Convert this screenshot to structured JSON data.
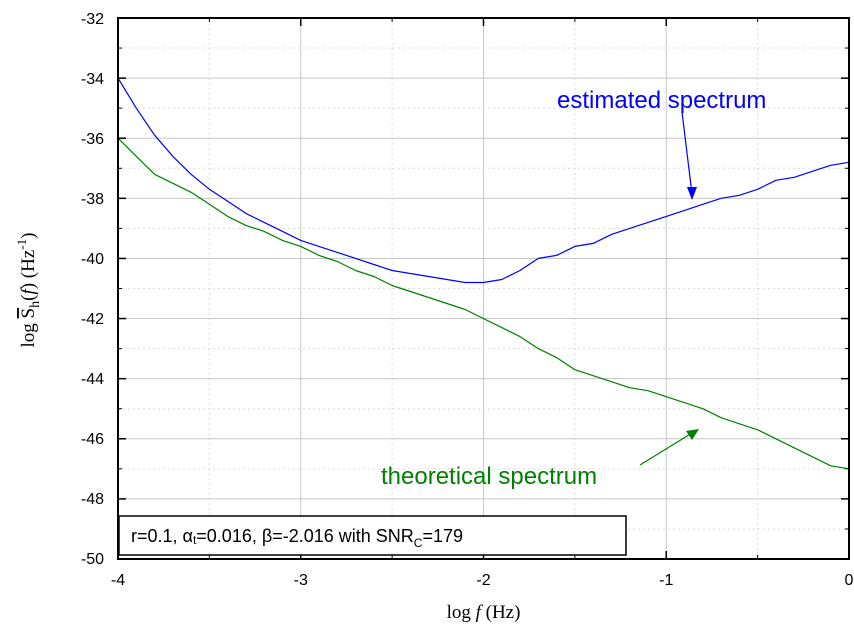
{
  "chart_data": {
    "type": "line",
    "xlim": [
      -4,
      0
    ],
    "ylim": [
      -50,
      -32
    ],
    "x_ticks": [
      "-4",
      "-3",
      "-2",
      "-1",
      "0"
    ],
    "y_ticks": [
      "-32",
      "-34",
      "-36",
      "-38",
      "-40",
      "-42",
      "-44",
      "-46",
      "-48",
      "-50"
    ],
    "xlabel": {
      "prefix": "log ",
      "var": "f",
      "unit": " (Hz)"
    },
    "ylabel": {
      "prefix": "log ",
      "S": "S",
      "sub": "h",
      "f": "f",
      "unit": " (Hz",
      "exp": "-1",
      "close": ")"
    },
    "grid": true,
    "colors": {
      "estimated": "#0000ff",
      "theoretical": "#008000"
    },
    "series": [
      {
        "key": "estimated",
        "label": "estimated spectrum",
        "color": "#0000ff",
        "x": [
          -4.0,
          -3.9,
          -3.8,
          -3.7,
          -3.6,
          -3.5,
          -3.4,
          -3.3,
          -3.2,
          -3.1,
          -3.0,
          -2.9,
          -2.8,
          -2.7,
          -2.6,
          -2.5,
          -2.4,
          -2.3,
          -2.2,
          -2.1,
          -2.0,
          -1.9,
          -1.8,
          -1.7,
          -1.6,
          -1.5,
          -1.4,
          -1.3,
          -1.2,
          -1.1,
          -1.0,
          -0.9,
          -0.8,
          -0.7,
          -0.6,
          -0.5,
          -0.4,
          -0.3,
          -0.2,
          -0.1,
          0.0
        ],
        "y": [
          -34.0,
          -35.0,
          -35.9,
          -36.6,
          -37.2,
          -37.7,
          -38.1,
          -38.5,
          -38.8,
          -39.1,
          -39.4,
          -39.6,
          -39.8,
          -40.0,
          -40.2,
          -40.4,
          -40.5,
          -40.6,
          -40.7,
          -40.8,
          -40.8,
          -40.7,
          -40.4,
          -40.0,
          -39.9,
          -39.6,
          -39.5,
          -39.2,
          -39.0,
          -38.8,
          -38.6,
          -38.4,
          -38.2,
          -38.0,
          -37.9,
          -37.7,
          -37.4,
          -37.3,
          -37.1,
          -36.9,
          -36.8
        ]
      },
      {
        "key": "theoretical",
        "label": "theoretical spectrum",
        "color": "#008000",
        "x": [
          -4.0,
          -3.9,
          -3.8,
          -3.7,
          -3.6,
          -3.5,
          -3.4,
          -3.3,
          -3.2,
          -3.1,
          -3.0,
          -2.9,
          -2.8,
          -2.7,
          -2.6,
          -2.5,
          -2.4,
          -2.3,
          -2.2,
          -2.1,
          -2.0,
          -1.9,
          -1.8,
          -1.7,
          -1.6,
          -1.5,
          -1.4,
          -1.3,
          -1.2,
          -1.1,
          -1.0,
          -0.9,
          -0.8,
          -0.7,
          -0.6,
          -0.5,
          -0.4,
          -0.3,
          -0.2,
          -0.1,
          0.0
        ],
        "y": [
          -36.0,
          -36.6,
          -37.2,
          -37.5,
          -37.8,
          -38.2,
          -38.6,
          -38.9,
          -39.1,
          -39.4,
          -39.6,
          -39.9,
          -40.1,
          -40.4,
          -40.6,
          -40.9,
          -41.1,
          -41.3,
          -41.5,
          -41.7,
          -42.0,
          -42.3,
          -42.6,
          -43.0,
          -43.3,
          -43.7,
          -43.9,
          -44.1,
          -44.3,
          -44.4,
          -44.6,
          -44.8,
          -45.0,
          -45.3,
          -45.5,
          -45.7,
          -46.0,
          -46.3,
          -46.6,
          -46.9,
          -47.0
        ]
      }
    ],
    "annotations": {
      "estimated": "estimated spectrum",
      "theoretical": "theoretical spectrum"
    },
    "info_box": {
      "p1": "r=0.1, ",
      "alpha": "α",
      "alpha_sub": "t",
      "p2": "=0.016, ",
      "beta": "β",
      "p3": "=-2.016 with SNR",
      "snr_sub": "C",
      "p4": "=179"
    }
  }
}
